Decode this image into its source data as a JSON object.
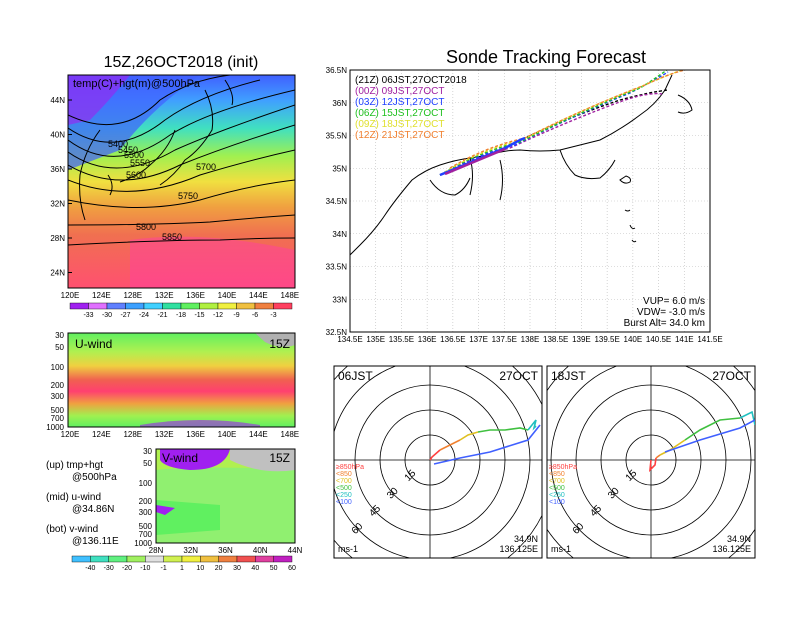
{
  "map_panel": {
    "title": "15Z,26OCT2018 (init)",
    "subtitle": "temp(C)+hgt(m)@500hPa",
    "lon_ticks": [
      "120E",
      "124E",
      "128E",
      "132E",
      "136E",
      "140E",
      "144E",
      "148E"
    ],
    "lat_ticks": [
      "44N",
      "40N",
      "36N",
      "32N",
      "28N",
      "24N"
    ],
    "contour_labels": [
      "5400",
      "5450",
      "5500",
      "5550",
      "5600",
      "5700",
      "5750",
      "5800",
      "5850"
    ],
    "colorbar_labels": [
      "-33",
      "-30",
      "-27",
      "-24",
      "-21",
      "-18",
      "-15",
      "-12",
      "-9",
      "-6",
      "-3"
    ],
    "colorbar_colors": [
      "#a020f0",
      "#e070ff",
      "#6080ff",
      "#3ca0ff",
      "#40d0ff",
      "#30e0a0",
      "#60f060",
      "#b0f040",
      "#f0f040",
      "#f0c040",
      "#f08040",
      "#ff4060"
    ]
  },
  "uwind_panel": {
    "label": "U-wind",
    "time": "15Z",
    "y_ticks": [
      "30",
      "50",
      "100",
      "200",
      "300",
      "500",
      "700",
      "1000"
    ],
    "x_ticks": [
      "120E",
      "124E",
      "128E",
      "132E",
      "136E",
      "140E",
      "144E",
      "148E"
    ]
  },
  "vwind_panel": {
    "label": "V-wind",
    "time": "15Z",
    "y_ticks": [
      "30",
      "50",
      "100",
      "200",
      "300",
      "500",
      "700",
      "1000"
    ],
    "x_ticks": [
      "28N",
      "32N",
      "36N",
      "40N",
      "44N"
    ]
  },
  "legend_text": {
    "up": "(up) tmp+hgt",
    "up2": "@500hPa",
    "mid": "(mid) u-wind",
    "mid2": "@34.86N",
    "bot": "(bot) v-wind",
    "bot2": "@136.11E"
  },
  "wind_colorbar_labels": [
    "-40",
    "-30",
    "-20",
    "-10",
    "-1",
    "1",
    "10",
    "20",
    "30",
    "40",
    "50",
    "60"
  ],
  "wind_colorbar_colors": [
    "#40c0ff",
    "#40e0c0",
    "#60f080",
    "#a0f060",
    "#e0e0e0",
    "#d0f050",
    "#f0f040",
    "#f0c040",
    "#f08040",
    "#f05050",
    "#e040a0",
    "#c020c0"
  ],
  "tracking": {
    "title": "Sonde Tracking Forecast",
    "lat_ticks": [
      "36.5N",
      "36N",
      "35.5N",
      "35N",
      "34.5N",
      "34N",
      "33.5N",
      "33N",
      "32.5N"
    ],
    "lon_ticks": [
      "134.5E",
      "135E",
      "135.5E",
      "136E",
      "136.5E",
      "137E",
      "137.5E",
      "138E",
      "138.5E",
      "139E",
      "139.5E",
      "140E",
      "140.5E",
      "141E",
      "141.5E"
    ],
    "launches": [
      {
        "text": "(21Z)  06JST,27OCT2018",
        "color": "#000000"
      },
      {
        "text": "(00Z)  09JST,27OCT",
        "color": "#a020a0"
      },
      {
        "text": "(03Z)  12JST,27OCT",
        "color": "#2040ff"
      },
      {
        "text": "(06Z)  15JST,27OCT",
        "color": "#20c020"
      },
      {
        "text": "(09Z)  18JST,27OCT",
        "color": "#e0e030"
      },
      {
        "text": "(12Z)  21JST,27OCT",
        "color": "#f08030"
      }
    ],
    "vup": "VUP=  6.0  m/s",
    "vdw": "VDW= -3.0  m/s",
    "burst": "Burst Alt=  34.0  km"
  },
  "polar_left": {
    "time": "06JST",
    "date": "27OCT",
    "units": "ms-1",
    "lat": "34.9N",
    "lon": "136.125E",
    "ring_labels": [
      "15",
      "30",
      "45",
      "60"
    ],
    "levels": [
      {
        "text": "≥850hPa",
        "color": "#ff4040"
      },
      {
        "text": "<850",
        "color": "#f08030"
      },
      {
        "text": "<700",
        "color": "#e0c020"
      },
      {
        "text": "<500",
        "color": "#40c040"
      },
      {
        "text": "<250",
        "color": "#20c0c0"
      },
      {
        "text": "<100",
        "color": "#4060ff"
      }
    ]
  },
  "polar_right": {
    "time": "18JST",
    "date": "27OCT",
    "units": "ms-1",
    "lat": "34.9N",
    "lon": "136.125E",
    "ring_labels": [
      "15",
      "30",
      "45",
      "60"
    ],
    "levels": [
      {
        "text": "≥850hPa",
        "color": "#ff4040"
      },
      {
        "text": "<850",
        "color": "#f08030"
      },
      {
        "text": "<700",
        "color": "#e0c020"
      },
      {
        "text": "<500",
        "color": "#40c040"
      },
      {
        "text": "<250",
        "color": "#20c0c0"
      },
      {
        "text": "<100",
        "color": "#4060ff"
      }
    ]
  }
}
